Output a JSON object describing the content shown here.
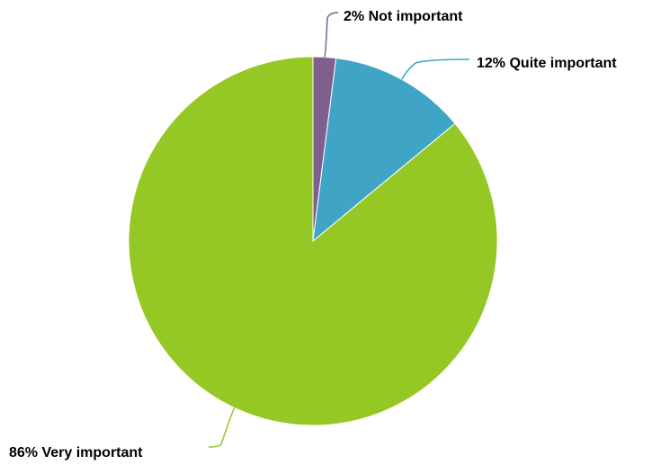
{
  "chart_data": {
    "type": "pie",
    "slices": [
      {
        "label": "Not important",
        "value": 2,
        "text": "2% Not important",
        "color": "#7F5F8E"
      },
      {
        "label": "Quite important",
        "value": 12,
        "text": "12% Quite important",
        "color": "#3FA4C5"
      },
      {
        "label": "Very important",
        "value": 86,
        "text": "86% Very important",
        "color": "#95C825"
      }
    ],
    "start_angle": "12 o'clock",
    "direction": "clockwise",
    "legend": "none"
  }
}
